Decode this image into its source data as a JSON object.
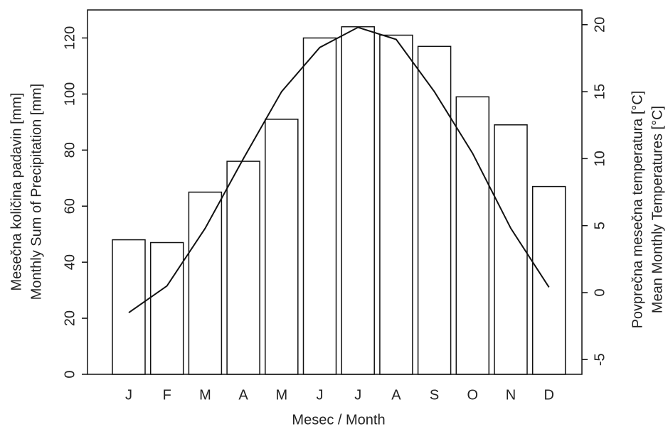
{
  "chart_data": {
    "type": "bar",
    "categories": [
      "J",
      "F",
      "M",
      "A",
      "M",
      "J",
      "J",
      "A",
      "S",
      "O",
      "N",
      "D"
    ],
    "series": [
      {
        "type": "bar",
        "color": "#ffffff",
        "values": [
          48,
          47,
          65,
          76,
          91,
          120,
          124,
          121,
          117,
          99,
          89,
          67
        ]
      },
      {
        "type": "line",
        "axis": "y2",
        "color": "#111111",
        "values": [
          -1.5,
          0.5,
          4.8,
          10,
          15,
          18.3,
          19.8,
          18.9,
          15,
          10.4,
          4.8,
          0.4
        ]
      }
    ],
    "ylim": [
      0,
      130
    ],
    "yticks": [
      0,
      20,
      40,
      60,
      80,
      100,
      120
    ],
    "y2lim": [
      -6.1,
      21.1
    ],
    "y2ticks": [
      -5,
      0,
      5,
      10,
      15,
      20
    ],
    "ylabel": [
      "Mesečna količina padavin [mm]",
      "Monthly Sum of Precipitation [mm]"
    ],
    "y2label": [
      "Povprečna mesečna temperatura [°C]",
      "Mean Monthly Temperatures [°C]"
    ],
    "xlabel": "Mesec / Month"
  }
}
